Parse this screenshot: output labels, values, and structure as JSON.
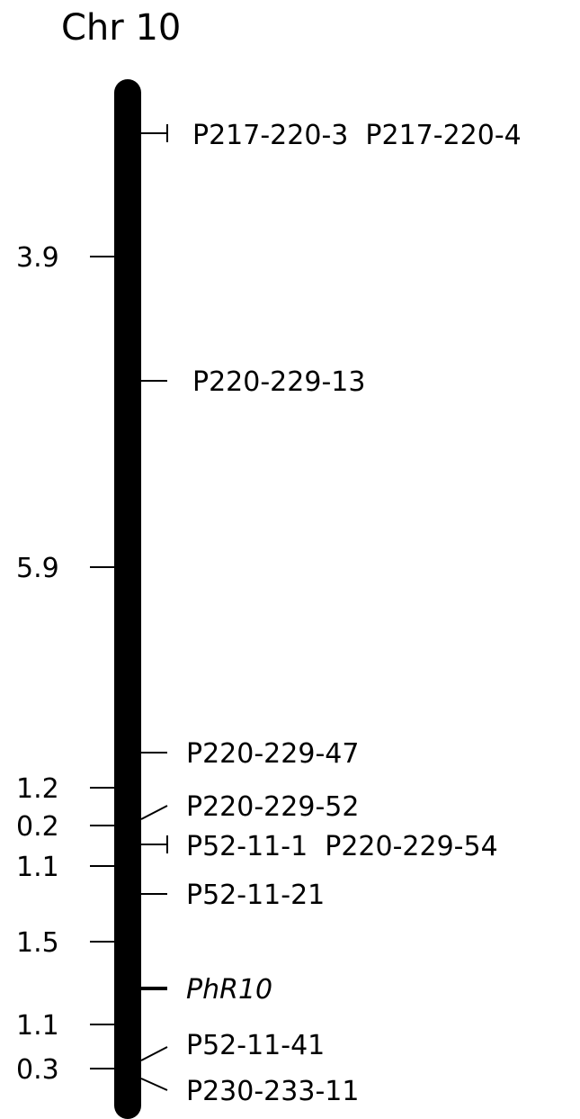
{
  "chromosome": {
    "title": "Chr 10"
  },
  "intervals": [
    {
      "label": "3.9"
    },
    {
      "label": "5.9"
    },
    {
      "label": "1.2"
    },
    {
      "label": "0.2"
    },
    {
      "label": "1.1"
    },
    {
      "label": "1.5"
    },
    {
      "label": "1.1"
    },
    {
      "label": "0.3"
    }
  ],
  "markers": [
    {
      "text": "P217-220-3  P217-220-4"
    },
    {
      "text": "P220-229-13"
    },
    {
      "text": "P220-229-47"
    },
    {
      "text": "P220-229-52"
    },
    {
      "text": "P52-11-1  P220-229-54"
    },
    {
      "text": "P52-11-21"
    },
    {
      "text": "PhR10"
    },
    {
      "text": "P52-11-41"
    },
    {
      "text": "P230-233-11"
    }
  ]
}
